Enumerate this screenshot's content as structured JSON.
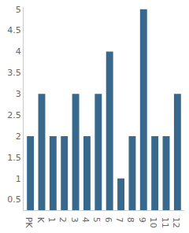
{
  "chart_data": {
    "type": "bar",
    "categories": [
      "PK",
      "K",
      "1",
      "2",
      "3",
      "4",
      "5",
      "6",
      "7",
      "8",
      "9",
      "10",
      "11",
      "12"
    ],
    "values": [
      2,
      3,
      2,
      2,
      3,
      2,
      3,
      4,
      1,
      2,
      5,
      2,
      2,
      3
    ],
    "color": "#38698c",
    "ylim": [
      0.25,
      5.05
    ],
    "yticks": [
      0.5,
      1,
      1.5,
      2,
      2.5,
      3,
      3.5,
      4,
      4.5,
      5
    ],
    "grid": false
  }
}
